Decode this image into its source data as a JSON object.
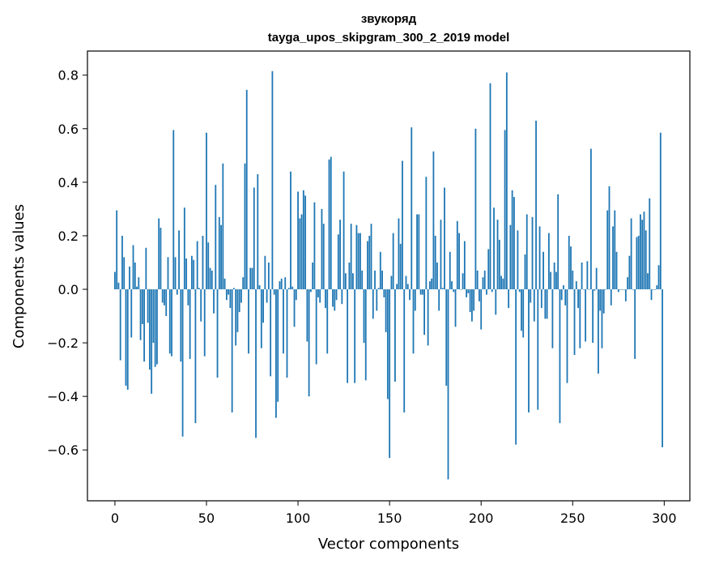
{
  "chart_data": {
    "type": "bar",
    "title": "звукоряд",
    "subtitle": "tayga_upos_skipgram_300_2_2019 model",
    "xlabel": "Vector components",
    "ylabel": "Components values",
    "xlim": [
      -15,
      314
    ],
    "ylim": [
      -0.79,
      0.89
    ],
    "xticks": [
      0,
      50,
      100,
      150,
      200,
      250,
      300
    ],
    "xtick_labels": [
      "0",
      "50",
      "100",
      "150",
      "200",
      "250",
      "300"
    ],
    "yticks": [
      -0.6,
      -0.4,
      -0.2,
      0.0,
      0.2,
      0.4,
      0.6,
      0.8
    ],
    "ytick_labels": [
      "−0.6",
      "−0.4",
      "−0.2",
      "0.0",
      "0.2",
      "0.4",
      "0.6",
      "0.8"
    ],
    "grid": false,
    "bar_color": "#1f77b4",
    "x": [
      0,
      1,
      2,
      3,
      4,
      5,
      6,
      7,
      8,
      9,
      10,
      11,
      12,
      13,
      14,
      15,
      16,
      17,
      18,
      19,
      20,
      21,
      22,
      23,
      24,
      25,
      26,
      27,
      28,
      29,
      30,
      31,
      32,
      33,
      34,
      35,
      36,
      37,
      38,
      39,
      40,
      41,
      42,
      43,
      44,
      45,
      46,
      47,
      48,
      49,
      50,
      51,
      52,
      53,
      54,
      55,
      56,
      57,
      58,
      59,
      60,
      61,
      62,
      63,
      64,
      65,
      66,
      67,
      68,
      69,
      70,
      71,
      72,
      73,
      74,
      75,
      76,
      77,
      78,
      79,
      80,
      81,
      82,
      83,
      84,
      85,
      86,
      87,
      88,
      89,
      90,
      91,
      92,
      93,
      94,
      95,
      96,
      97,
      98,
      99,
      100,
      101,
      102,
      103,
      104,
      105,
      106,
      107,
      108,
      109,
      110,
      111,
      112,
      113,
      114,
      115,
      116,
      117,
      118,
      119,
      120,
      121,
      122,
      123,
      124,
      125,
      126,
      127,
      128,
      129,
      130,
      131,
      132,
      133,
      134,
      135,
      136,
      137,
      138,
      139,
      140,
      141,
      142,
      143,
      144,
      145,
      146,
      147,
      148,
      149,
      150,
      151,
      152,
      153,
      154,
      155,
      156,
      157,
      158,
      159,
      160,
      161,
      162,
      163,
      164,
      165,
      166,
      167,
      168,
      169,
      170,
      171,
      172,
      173,
      174,
      175,
      176,
      177,
      178,
      179,
      180,
      181,
      182,
      183,
      184,
      185,
      186,
      187,
      188,
      189,
      190,
      191,
      192,
      193,
      194,
      195,
      196,
      197,
      198,
      199,
      200,
      201,
      202,
      203,
      204,
      205,
      206,
      207,
      208,
      209,
      210,
      211,
      212,
      213,
      214,
      215,
      216,
      217,
      218,
      219,
      220,
      221,
      222,
      223,
      224,
      225,
      226,
      227,
      228,
      229,
      230,
      231,
      232,
      233,
      234,
      235,
      236,
      237,
      238,
      239,
      240,
      241,
      242,
      243,
      244,
      245,
      246,
      247,
      248,
      249,
      250,
      251,
      252,
      253,
      254,
      255,
      256,
      257,
      258,
      259,
      260,
      261,
      262,
      263,
      264,
      265,
      266,
      267,
      268,
      269,
      270,
      271,
      272,
      273,
      274,
      275,
      276,
      277,
      278,
      279,
      280,
      281,
      282,
      283,
      284,
      285,
      286,
      287,
      288,
      289,
      290,
      291,
      292,
      293,
      294,
      295,
      296,
      297,
      298,
      299
    ],
    "values": [
      0.065,
      0.295,
      0.025,
      -0.265,
      0.2,
      0.12,
      -0.36,
      -0.375,
      0.085,
      -0.18,
      0.165,
      0.1,
      0.01,
      0.045,
      -0.19,
      -0.13,
      -0.27,
      0.155,
      -0.125,
      -0.3,
      -0.39,
      -0.2,
      -0.29,
      -0.28,
      0.265,
      0.23,
      -0.05,
      -0.06,
      -0.1,
      0.12,
      -0.24,
      -0.25,
      0.595,
      0.12,
      -0.02,
      0.22,
      -0.27,
      -0.55,
      0.305,
      0.115,
      -0.06,
      -0.26,
      0.125,
      0.11,
      -0.5,
      0.18,
      0.005,
      -0.12,
      0.2,
      -0.25,
      0.585,
      0.175,
      0.08,
      0.07,
      -0.09,
      0.39,
      -0.33,
      0.27,
      0.24,
      0.47,
      0.04,
      -0.04,
      -0.02,
      -0.07,
      -0.46,
      0.005,
      -0.21,
      -0.16,
      -0.085,
      -0.05,
      0.045,
      0.47,
      0.745,
      -0.24,
      0.08,
      0.08,
      0.38,
      -0.555,
      0.43,
      0.015,
      -0.22,
      -0.125,
      0.125,
      -0.05,
      0.1,
      -0.325,
      0.815,
      -0.02,
      -0.48,
      -0.42,
      0.03,
      0.04,
      -0.24,
      0.045,
      -0.33,
      0.005,
      0.44,
      0.01,
      -0.14,
      -0.04,
      0.365,
      0.265,
      0.28,
      0.37,
      0.35,
      -0.195,
      -0.4,
      -0.01,
      0.1,
      0.325,
      -0.28,
      -0.03,
      -0.05,
      0.3,
      0.245,
      -0.07,
      -0.24,
      0.485,
      0.495,
      -0.065,
      -0.08,
      -0.04,
      0.205,
      0.26,
      -0.055,
      0.44,
      0.06,
      -0.35,
      0.1,
      0.245,
      0.06,
      -0.35,
      0.24,
      0.21,
      0.21,
      0.07,
      -0.2,
      -0.34,
      0.18,
      0.2,
      0.245,
      -0.11,
      0.07,
      -0.08,
      0.005,
      0.14,
      0.07,
      -0.03,
      -0.16,
      -0.41,
      -0.63,
      0.05,
      0.21,
      -0.345,
      0.02,
      0.265,
      0.17,
      0.48,
      -0.46,
      0.05,
      0.02,
      -0.04,
      0.605,
      -0.24,
      -0.08,
      0.28,
      0.28,
      -0.02,
      -0.02,
      -0.17,
      0.42,
      -0.21,
      0.03,
      0.04,
      0.515,
      0.2,
      0.1,
      -0.08,
      0.26,
      0.005,
      0.38,
      -0.36,
      -0.71,
      0.14,
      0.03,
      -0.01,
      -0.14,
      0.255,
      0.21,
      0.0,
      0.06,
      0.18,
      -0.03,
      -0.015,
      -0.085,
      -0.12,
      -0.08,
      0.6,
      0.07,
      -0.045,
      -0.15,
      0.045,
      0.07,
      -0.02,
      0.15,
      0.77,
      -0.01,
      0.305,
      -0.095,
      0.26,
      0.185,
      0.05,
      0.04,
      0.595,
      0.81,
      -0.07,
      0.24,
      0.37,
      0.345,
      -0.58,
      0.22,
      -0.01,
      -0.155,
      -0.18,
      0.13,
      0.28,
      -0.46,
      -0.05,
      0.27,
      -0.12,
      0.63,
      -0.45,
      0.235,
      -0.07,
      0.14,
      -0.11,
      -0.11,
      0.21,
      0.065,
      -0.22,
      0.1,
      0.065,
      0.355,
      -0.5,
      -0.04,
      0.015,
      -0.06,
      -0.35,
      0.2,
      0.16,
      0.07,
      -0.245,
      0.03,
      -0.07,
      -0.22,
      0.1,
      0.0,
      -0.195,
      0.105,
      0.0,
      0.525,
      -0.2,
      -0.005,
      0.08,
      -0.315,
      -0.08,
      -0.22,
      -0.09,
      0.0,
      0.295,
      0.385,
      -0.06,
      0.235,
      0.295,
      0.14,
      -0.01,
      0.0,
      0.0,
      0.0,
      -0.045,
      0.045,
      0.125,
      0.265,
      0.0,
      -0.26,
      0.195,
      0.2,
      0.28,
      0.26,
      0.29,
      0.22,
      0.06,
      0.34,
      -0.04,
      0.0,
      0.0,
      0.015,
      0.09,
      0.585,
      -0.59
    ]
  }
}
